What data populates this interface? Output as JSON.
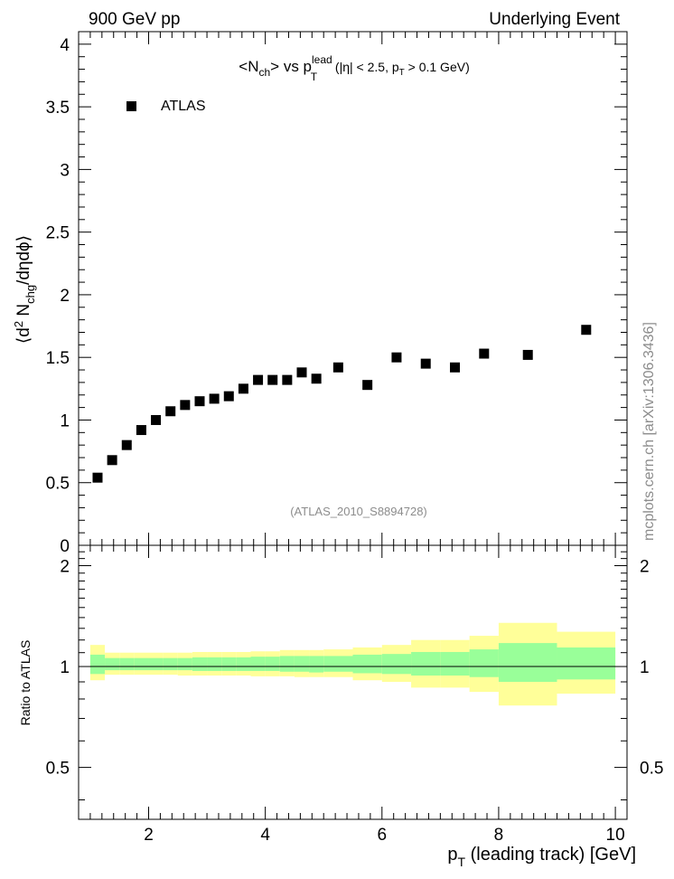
{
  "header": {
    "left": "900 GeV pp",
    "right": "Underlying Event"
  },
  "watermark": "mcplots.cern.ch [arXiv:1306.3436]",
  "chart_data": {
    "type": "scatter",
    "title": {
      "main": "<N",
      "main_sub": "ch",
      "mid": "> vs p",
      "mid_sup": "lead",
      "mid_sub": "T",
      "cuts": " (|η| < 2.5, p",
      "cuts_sub": "T",
      "cuts_end": " > 0.1 GeV)"
    },
    "ylabel": {
      "p1": "⟨d",
      "sup2": "2",
      "p2": " N",
      "sub_chg": "chg",
      "p3": "/dηdϕ⟩"
    },
    "xlabel": {
      "p1": "p",
      "sub": "T",
      "p2": " (leading track) [GeV]"
    },
    "ratio_ylabel": "Ratio to ATLAS",
    "reference": "(ATLAS_2010_S8894728)",
    "legend": [
      {
        "label": "ATLAS",
        "marker": "square",
        "color": "#000000"
      }
    ],
    "xlim": [
      0.8,
      10.2
    ],
    "ylim": [
      0,
      4.1
    ],
    "ratio_ylim": [
      0.35,
      2.3
    ],
    "x_ticks": [
      2,
      4,
      6,
      8,
      10
    ],
    "x_tick_labels": [
      "2",
      "4",
      "6",
      "8",
      "10"
    ],
    "y_ticks": [
      0,
      0.5,
      1,
      1.5,
      2,
      2.5,
      3,
      3.5,
      4
    ],
    "y_tick_labels": [
      "0",
      "0.5",
      "1",
      "1.5",
      "2",
      "2.5",
      "3",
      "3.5",
      "4"
    ],
    "ratio_ticks": [
      0.5,
      1,
      2
    ],
    "ratio_tick_labels": [
      "0.5",
      "1",
      "2"
    ],
    "series": [
      {
        "name": "ATLAS",
        "x": [
          1.125,
          1.375,
          1.625,
          1.875,
          2.125,
          2.375,
          2.625,
          2.875,
          3.125,
          3.375,
          3.625,
          3.875,
          4.125,
          4.375,
          4.625,
          4.875,
          5.25,
          5.75,
          6.25,
          6.75,
          7.25,
          7.75,
          8.5,
          9.5
        ],
        "y": [
          0.54,
          0.68,
          0.8,
          0.92,
          1.0,
          1.07,
          1.12,
          1.15,
          1.17,
          1.19,
          1.25,
          1.32,
          1.32,
          1.32,
          1.38,
          1.33,
          1.42,
          1.28,
          1.5,
          1.45,
          1.42,
          1.53,
          1.52,
          1.72
        ]
      }
    ],
    "ratio_bands": {
      "edges": [
        1.0,
        1.25,
        1.5,
        1.75,
        2.0,
        2.25,
        2.5,
        2.75,
        3.0,
        3.25,
        3.5,
        3.75,
        4.0,
        4.25,
        4.5,
        4.75,
        5.0,
        5.5,
        6.0,
        6.5,
        7.0,
        7.5,
        8.0,
        9.0,
        10.0
      ],
      "inner_lo": [
        0.95,
        0.975,
        0.975,
        0.975,
        0.975,
        0.975,
        0.975,
        0.97,
        0.97,
        0.97,
        0.97,
        0.97,
        0.97,
        0.965,
        0.965,
        0.96,
        0.965,
        0.955,
        0.95,
        0.94,
        0.94,
        0.93,
        0.9,
        0.915
      ],
      "inner_hi": [
        1.085,
        1.06,
        1.06,
        1.06,
        1.06,
        1.06,
        1.06,
        1.065,
        1.065,
        1.065,
        1.065,
        1.07,
        1.07,
        1.075,
        1.075,
        1.075,
        1.075,
        1.085,
        1.09,
        1.105,
        1.105,
        1.125,
        1.175,
        1.14
      ],
      "outer_lo": [
        0.91,
        0.945,
        0.945,
        0.945,
        0.945,
        0.945,
        0.94,
        0.94,
        0.94,
        0.94,
        0.94,
        0.935,
        0.935,
        0.935,
        0.93,
        0.93,
        0.93,
        0.91,
        0.9,
        0.865,
        0.865,
        0.84,
        0.765,
        0.83
      ],
      "outer_hi": [
        1.16,
        1.1,
        1.1,
        1.1,
        1.1,
        1.1,
        1.1,
        1.105,
        1.105,
        1.105,
        1.105,
        1.11,
        1.11,
        1.12,
        1.12,
        1.12,
        1.125,
        1.14,
        1.16,
        1.2,
        1.2,
        1.235,
        1.35,
        1.27
      ],
      "inner_color": "#99ff99",
      "outer_color": "#ffff99"
    }
  }
}
